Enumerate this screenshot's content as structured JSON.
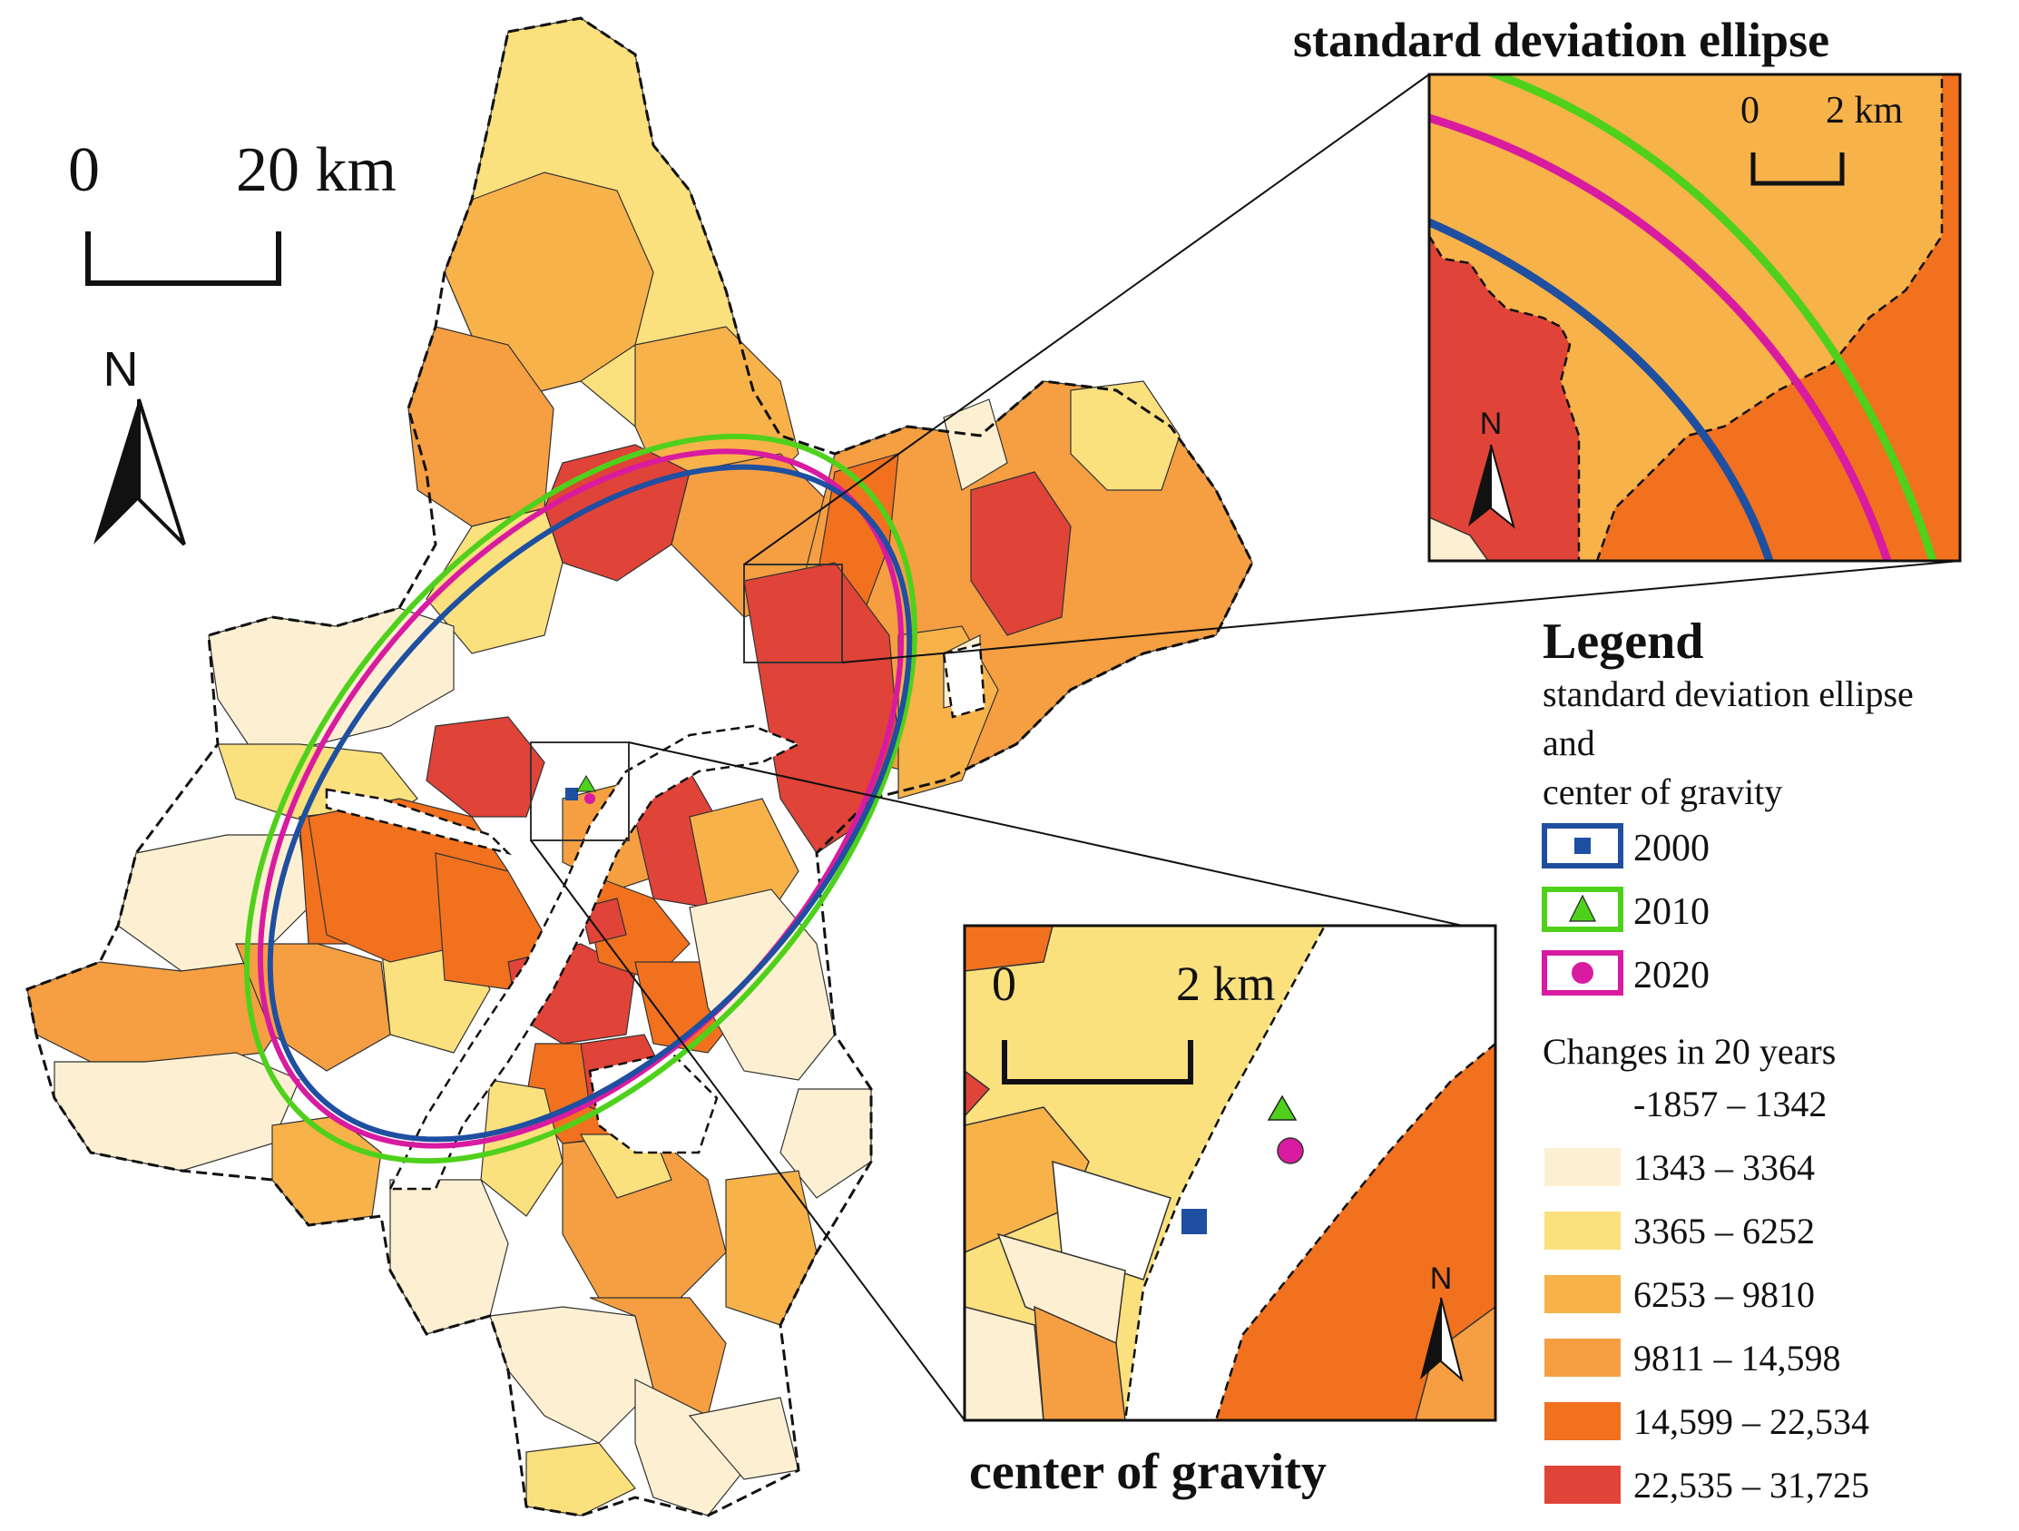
{
  "titles": {
    "ellipse_inset": "standard deviation ellipse",
    "gravity_inset": "center of gravity"
  },
  "scale_bars": {
    "main": {
      "zero": "0",
      "value": "20 km"
    },
    "ellipse_inset": {
      "zero": "0",
      "value": "2 km"
    },
    "gravity_inset": {
      "zero": "0",
      "value": "2 km"
    }
  },
  "north_arrow": {
    "label": "N"
  },
  "legend": {
    "title": "Legend",
    "section_line1": "standard deviation ellipse",
    "section_line2": "and",
    "section_line3": "center of gravity",
    "years": [
      {
        "label": "2000",
        "color": "#1f4fa0",
        "marker": "square"
      },
      {
        "label": "2010",
        "color": "#4fd11b",
        "marker": "triangle"
      },
      {
        "label": "2020",
        "color": "#d81ba0",
        "marker": "circle"
      }
    ],
    "changes_title": "Changes in 20 years",
    "classes": [
      {
        "label": "-1857 – 1342",
        "color": "#ffffff"
      },
      {
        "label": "1343 – 3364",
        "color": "#fdf0d2"
      },
      {
        "label": "3365 – 6252",
        "color": "#fbe07e"
      },
      {
        "label": "6253 – 9810",
        "color": "#f8b24a"
      },
      {
        "label": "9811 – 14,598",
        "color": "#f59f42"
      },
      {
        "label": "14,599 – 22,534",
        "color": "#f1711f"
      },
      {
        "label": "22,535 – 31,725",
        "color": "#e04338"
      }
    ]
  }
}
